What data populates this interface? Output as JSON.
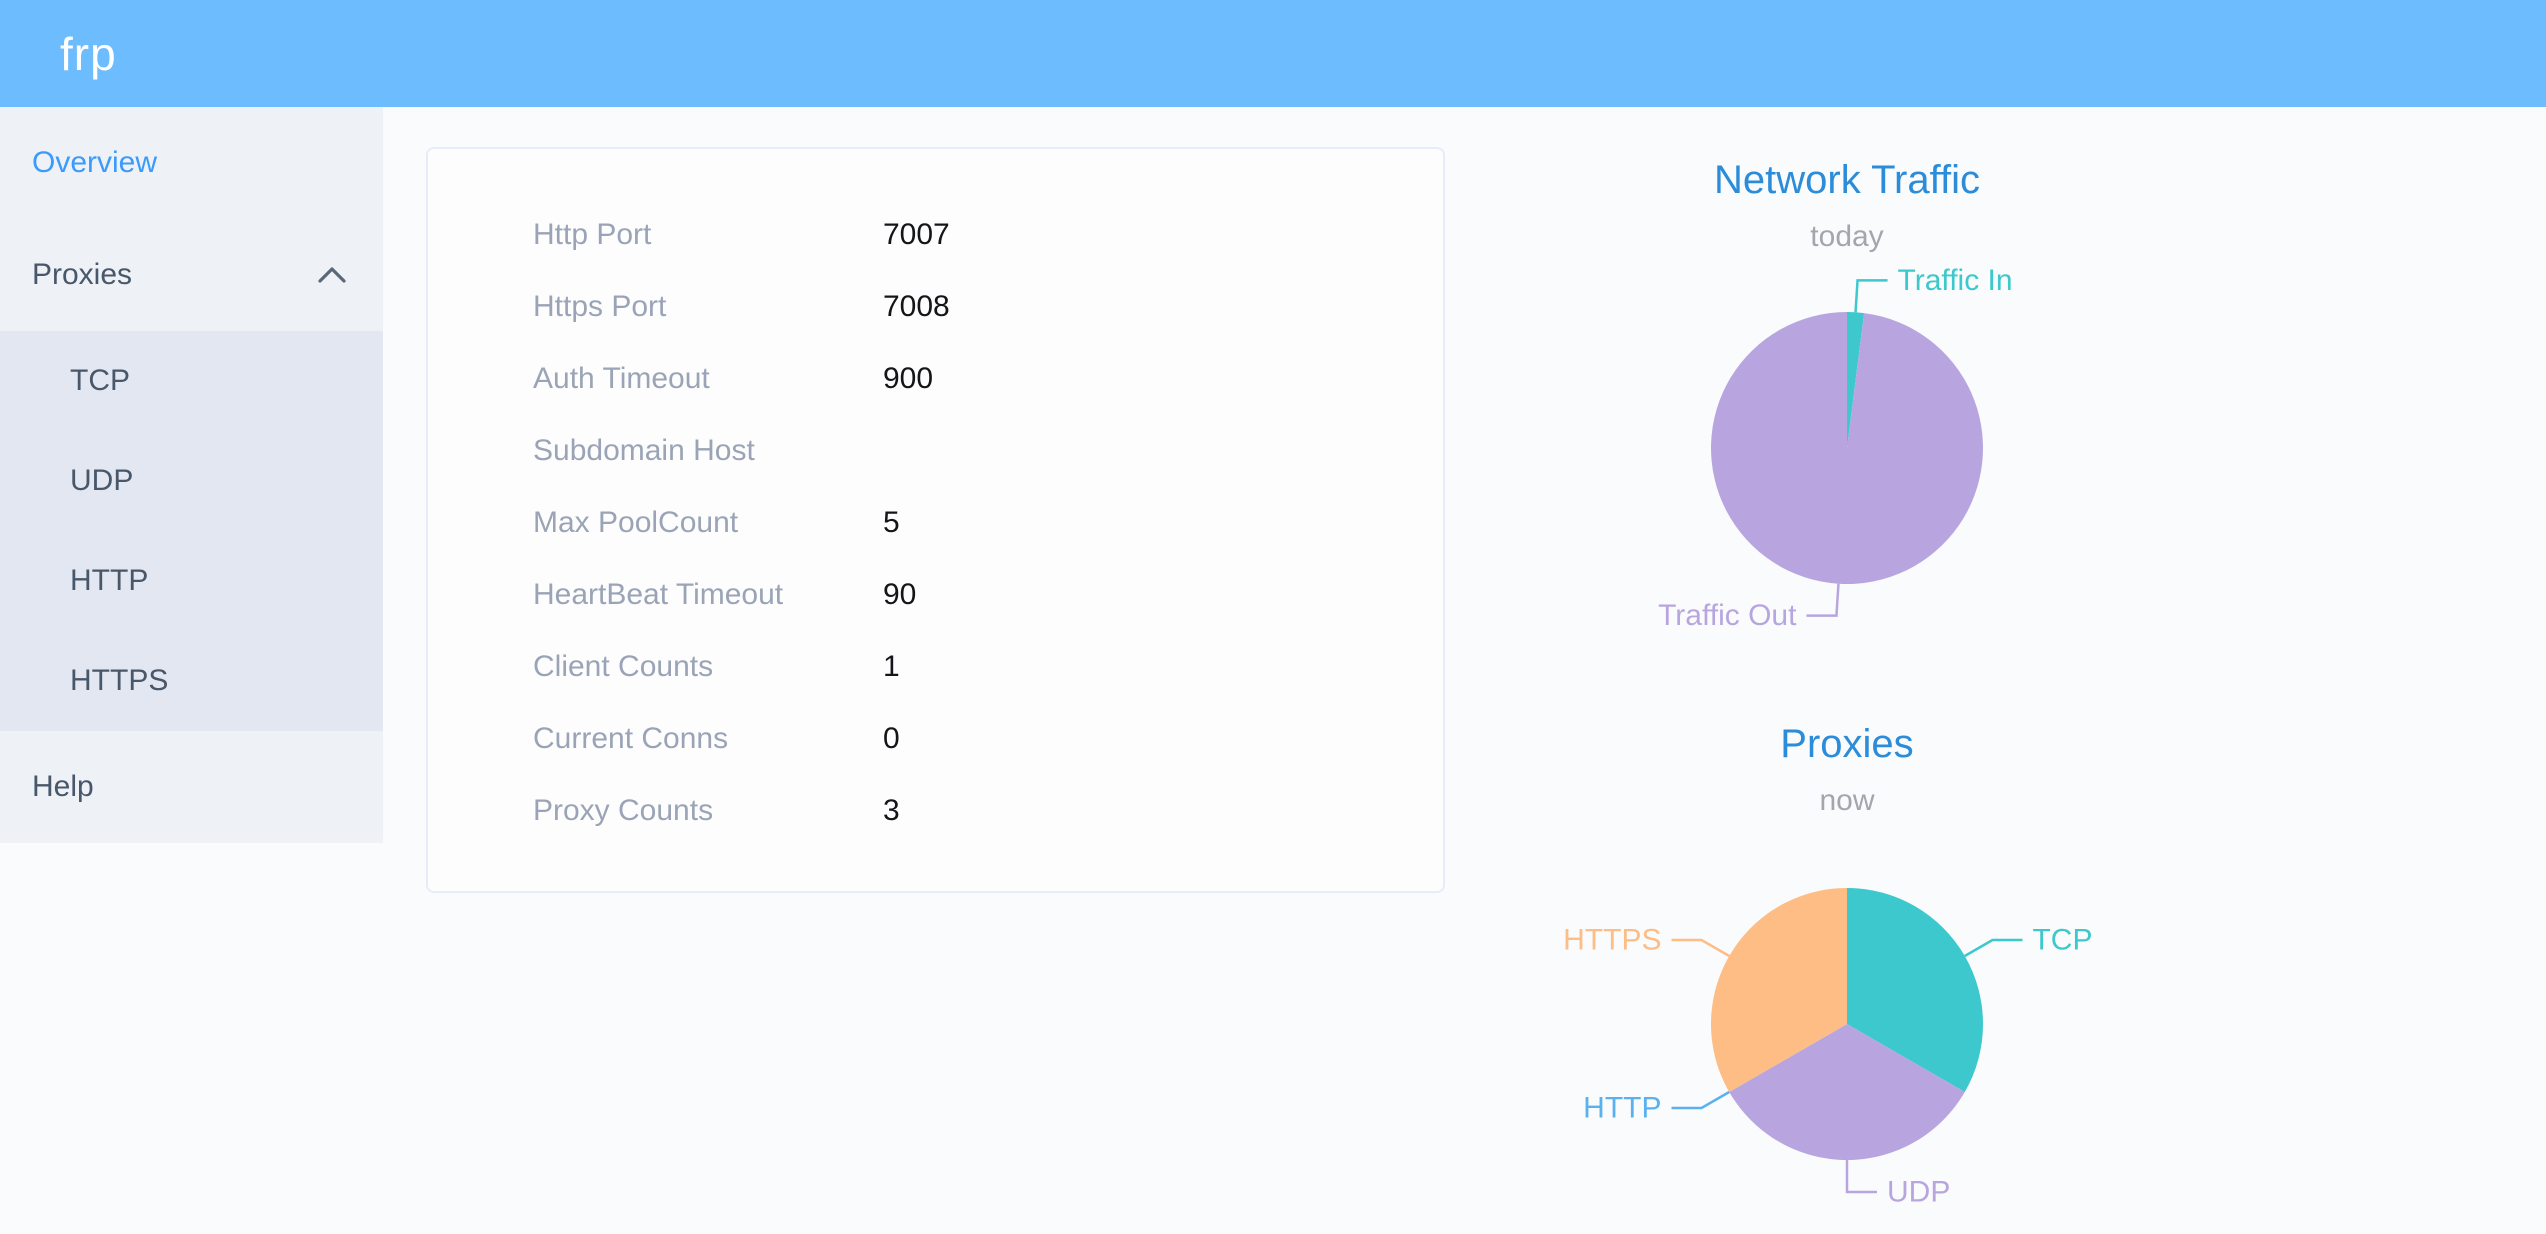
{
  "header": {
    "logo": "frp"
  },
  "colors": {
    "header_bg": "#6dbcfe",
    "sidebar_bg": "#eef1f6",
    "submenu_bg": "#e3e7f1",
    "active_link": "#3a9bfa",
    "title_blue": "#2b8cd9",
    "teal": "#3cc8cc",
    "purple": "#b8a5e0",
    "orange": "#fdbd84",
    "blue": "#5ab1ef"
  },
  "sidebar": {
    "items": [
      {
        "label": "Overview",
        "active": true
      },
      {
        "label": "Proxies",
        "expanded": true,
        "children": [
          "TCP",
          "UDP",
          "HTTP",
          "HTTPS"
        ]
      },
      {
        "label": "Help"
      }
    ]
  },
  "server_info": {
    "rows": [
      {
        "label": "Http Port",
        "value": "7007"
      },
      {
        "label": "Https Port",
        "value": "7008"
      },
      {
        "label": "Auth Timeout",
        "value": "900"
      },
      {
        "label": "Subdomain Host",
        "value": ""
      },
      {
        "label": "Max PoolCount",
        "value": "5"
      },
      {
        "label": "HeartBeat Timeout",
        "value": "90"
      },
      {
        "label": "Client Counts",
        "value": "1"
      },
      {
        "label": "Current Conns",
        "value": "0"
      },
      {
        "label": "Proxy Counts",
        "value": "3"
      }
    ]
  },
  "chart_data": [
    {
      "type": "pie",
      "title": "Network Traffic",
      "subtitle": "today",
      "legend_position": "none",
      "labels_on": "outside-with-leader-lines",
      "series": [
        {
          "name": "Traffic In",
          "value": 2,
          "color": "#3cc8cc"
        },
        {
          "name": "Traffic Out",
          "value": 98,
          "color": "#b8a5e0"
        }
      ]
    },
    {
      "type": "pie",
      "title": "Proxies",
      "subtitle": "now",
      "legend_position": "none",
      "labels_on": "outside-with-leader-lines",
      "series": [
        {
          "name": "TCP",
          "value": 1,
          "color": "#3cc8cc"
        },
        {
          "name": "UDP",
          "value": 1,
          "color": "#b8a5e0"
        },
        {
          "name": "HTTP",
          "value": 0,
          "color": "#5ab1ef"
        },
        {
          "name": "HTTPS",
          "value": 1,
          "color": "#fdbd84"
        }
      ]
    }
  ]
}
